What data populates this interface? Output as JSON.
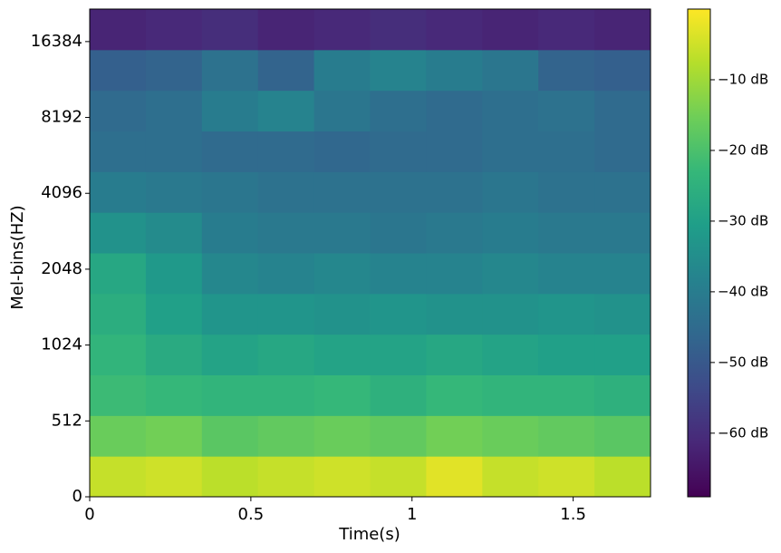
{
  "chart_data": {
    "type": "heatmap",
    "xlabel": "Time(s)",
    "ylabel": "Mel-bins(HZ)",
    "xlim": [
      0,
      1.74
    ],
    "xticks": [
      0,
      0.5,
      1,
      1.5
    ],
    "ylim": [
      0,
      22050
    ],
    "yticks": [
      0,
      512,
      1024,
      2048,
      4096,
      8192,
      16384
    ],
    "yscale": "mel",
    "colormap": "viridis",
    "clim": [
      -69,
      0
    ],
    "cticks": [
      {
        "value": -10,
        "label": "−10 dB"
      },
      {
        "value": -20,
        "label": "−20 dB"
      },
      {
        "value": -30,
        "label": "−30 dB"
      },
      {
        "value": -40,
        "label": "−40 dB"
      },
      {
        "value": -50,
        "label": "−50 dB"
      },
      {
        "value": -60,
        "label": "−60 dB"
      }
    ],
    "z": [
      [
        -6,
        -5,
        -7,
        -6,
        -5,
        -6,
        -3,
        -6,
        -5,
        -7
      ],
      [
        -16,
        -15,
        -18,
        -17,
        -16,
        -17,
        -15,
        -16,
        -17,
        -18
      ],
      [
        -22,
        -23,
        -24,
        -24,
        -23,
        -25,
        -23,
        -24,
        -24,
        -25
      ],
      [
        -24,
        -27,
        -29,
        -28,
        -29,
        -29,
        -28,
        -29,
        -30,
        -30
      ],
      [
        -26,
        -30,
        -33,
        -33,
        -34,
        -33,
        -34,
        -34,
        -33,
        -34
      ],
      [
        -28,
        -32,
        -37,
        -38,
        -37,
        -38,
        -38,
        -37,
        -38,
        -38
      ],
      [
        -34,
        -36,
        -40,
        -41,
        -41,
        -42,
        -41,
        -40,
        -41,
        -41
      ],
      [
        -40,
        -41,
        -42,
        -43,
        -43,
        -43,
        -43,
        -42,
        -43,
        -43
      ],
      [
        -44,
        -44,
        -45,
        -45,
        -46,
        -45,
        -45,
        -44,
        -44,
        -45
      ],
      [
        -45,
        -44,
        -40,
        -38,
        -42,
        -44,
        -45,
        -44,
        -43,
        -45
      ],
      [
        -48,
        -47,
        -43,
        -47,
        -40,
        -38,
        -40,
        -42,
        -47,
        -48
      ],
      [
        -62,
        -61,
        -60,
        -62,
        -61,
        -60,
        -61,
        -62,
        -61,
        -62
      ]
    ]
  }
}
